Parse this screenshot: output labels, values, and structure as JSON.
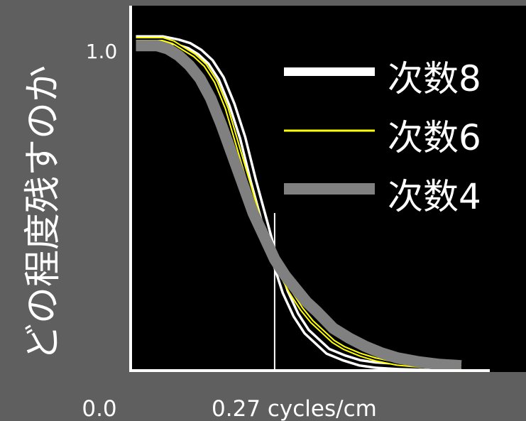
{
  "chart_data": {
    "type": "line",
    "title": "",
    "xlabel": "",
    "ylabel": "どの程度残すのか",
    "x_ticks": [
      {
        "value": 0.0,
        "label": "0.0"
      },
      {
        "value": 0.27,
        "label": "0.27 cycles/cm"
      }
    ],
    "y_ticks": [
      {
        "value": 1.0,
        "label": "1.0"
      }
    ],
    "xlim": [
      0.0,
      0.7
    ],
    "ylim": [
      0.0,
      1.05
    ],
    "reference_line_x": 0.27,
    "grid": false,
    "legend_position": "top-right",
    "colors": {
      "background": "#5f5f5f",
      "plot_area": "#000000",
      "axes": "#ffffff"
    },
    "series": [
      {
        "name": "次数8",
        "color": "#ffffff",
        "x": [
          0.01,
          0.06,
          0.09,
          0.11,
          0.13,
          0.15,
          0.17,
          0.19,
          0.21,
          0.23,
          0.25,
          0.27,
          0.29,
          0.31,
          0.33,
          0.35,
          0.37,
          0.4,
          0.43,
          0.46,
          0.5,
          0.54,
          0.58,
          0.62
        ],
        "y": [
          1.0,
          1.0,
          0.99,
          0.98,
          0.96,
          0.93,
          0.88,
          0.8,
          0.7,
          0.57,
          0.45,
          0.33,
          0.23,
          0.16,
          0.11,
          0.08,
          0.05,
          0.03,
          0.015,
          0.008,
          0.004,
          0.002,
          0.001,
          0.0
        ]
      },
      {
        "name": "次数6",
        "color": "#ffff00",
        "x": [
          0.01,
          0.06,
          0.08,
          0.1,
          0.12,
          0.14,
          0.16,
          0.18,
          0.2,
          0.22,
          0.24,
          0.26,
          0.28,
          0.3,
          0.32,
          0.34,
          0.36,
          0.38,
          0.4,
          0.43,
          0.46,
          0.5,
          0.54,
          0.58,
          0.62
        ],
        "y": [
          1.0,
          1.0,
          0.99,
          0.97,
          0.95,
          0.92,
          0.87,
          0.79,
          0.68,
          0.57,
          0.46,
          0.36,
          0.29,
          0.23,
          0.18,
          0.14,
          0.11,
          0.08,
          0.06,
          0.04,
          0.025,
          0.012,
          0.006,
          0.003,
          0.002
        ]
      },
      {
        "name": "次数4",
        "color": "#808080",
        "x": [
          0.01,
          0.05,
          0.07,
          0.09,
          0.11,
          0.13,
          0.15,
          0.17,
          0.19,
          0.21,
          0.23,
          0.25,
          0.27,
          0.29,
          0.31,
          0.33,
          0.35,
          0.38,
          0.41,
          0.44,
          0.47,
          0.5,
          0.54,
          0.58,
          0.62
        ],
        "y": [
          0.98,
          0.98,
          0.97,
          0.95,
          0.92,
          0.88,
          0.82,
          0.74,
          0.65,
          0.56,
          0.47,
          0.4,
          0.33,
          0.28,
          0.24,
          0.2,
          0.17,
          0.12,
          0.09,
          0.065,
          0.045,
          0.03,
          0.018,
          0.01,
          0.006
        ]
      }
    ]
  }
}
